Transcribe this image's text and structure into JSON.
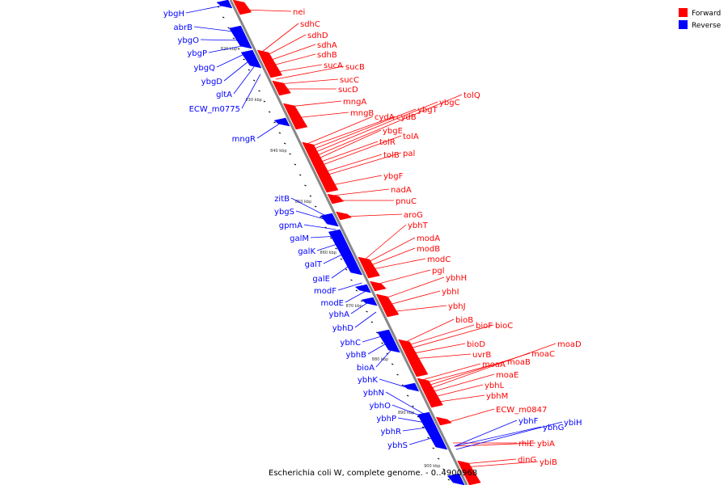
{
  "caption": "Escherichia coli W, complete genome. - 0..4900968",
  "legend": [
    {
      "label": "Forward",
      "color": "#ff0000"
    },
    {
      "label": "Reverse",
      "color": "#0000ff"
    }
  ],
  "colors": {
    "forward": "#ff0000",
    "reverse": "#0000ff",
    "backbone": "#888888"
  },
  "ticks": [
    "820 kbp",
    "830 kbp",
    "840 kbp",
    "850 kbp",
    "860 kbp",
    "870 kbp",
    "880 kbp",
    "890 kbp",
    "900 kbp"
  ],
  "forward_genes": [
    "nei",
    "sdhC",
    "sdhD",
    "sdhA",
    "sdhB",
    "sucA",
    "sucB",
    "sucC",
    "sucD",
    "mngA",
    "mngB",
    "cydA",
    "cydB",
    "ybgT",
    "ybgC",
    "tolQ",
    "ybgE",
    "tolR",
    "tolA",
    "tolB",
    "pal",
    "ybgF",
    "nadA",
    "pnuC",
    "aroG",
    "ybhT",
    "modA",
    "modB",
    "modC",
    "pgl",
    "ybhH",
    "ybhI",
    "ybhJ",
    "bioB",
    "bioF",
    "bioC",
    "bioD",
    "uvrB",
    "moaA",
    "moaB",
    "moaC",
    "moaD",
    "moaE",
    "ybhL",
    "ybhM",
    "ECW_m0847",
    "rhlE",
    "ybiA",
    "dinG",
    "ybiB"
  ],
  "reverse_genes": [
    "ybgH",
    "abrB",
    "ybgO",
    "ybgP",
    "ybgQ",
    "ybgD",
    "gltA",
    "ECW_m0775",
    "mngR",
    "zitB",
    "ybgS",
    "gpmA",
    "galM",
    "galK",
    "galT",
    "galE",
    "modF",
    "modE",
    "ybhA",
    "ybhD",
    "ybhC",
    "ybhB",
    "bioA",
    "ybhK",
    "ybhN",
    "ybhO",
    "ybhP",
    "ybhR",
    "ybhS",
    "ybhF",
    "ybhG",
    "ybiH"
  ]
}
